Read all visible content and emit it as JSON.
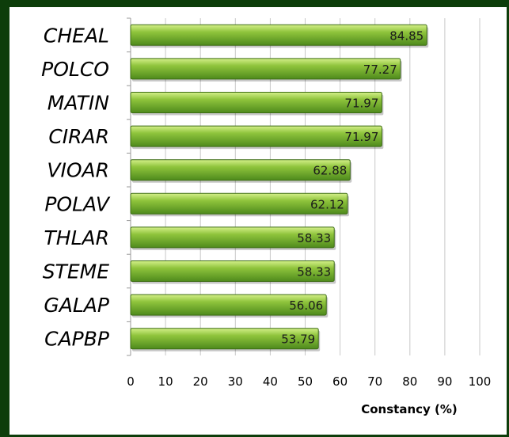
{
  "chart_data": {
    "type": "bar",
    "orientation": "horizontal",
    "categories": [
      "CHEAL",
      "POLCO",
      "MATIN",
      "CIRAR",
      "VIOAR",
      "POLAV",
      "THLAR",
      "STEME",
      "GALAP",
      "CAPBP"
    ],
    "values": [
      84.85,
      77.27,
      71.97,
      71.97,
      62.88,
      62.12,
      58.33,
      58.33,
      56.06,
      53.79
    ],
    "value_labels": [
      "84.85",
      "77.27",
      "71.97",
      "71.97",
      "62.88",
      "62.12",
      "58.33",
      "58.33",
      "56.06",
      "53.79"
    ],
    "xlabel": "Constancy (%)",
    "xlim": [
      0,
      100
    ],
    "x_ticks": [
      "0",
      "10",
      "20",
      "30",
      "40",
      "50",
      "60",
      "70",
      "80",
      "90",
      "100"
    ],
    "grid": true,
    "legend": "none",
    "colors": {
      "bar_light": "#d4f08a",
      "bar_mid": "#8fc43c",
      "bar_dark": "#4e8a1c",
      "bar_edge": "#3d6d14",
      "grid": "#c8c8c8",
      "border": "#0d3d0a"
    }
  }
}
